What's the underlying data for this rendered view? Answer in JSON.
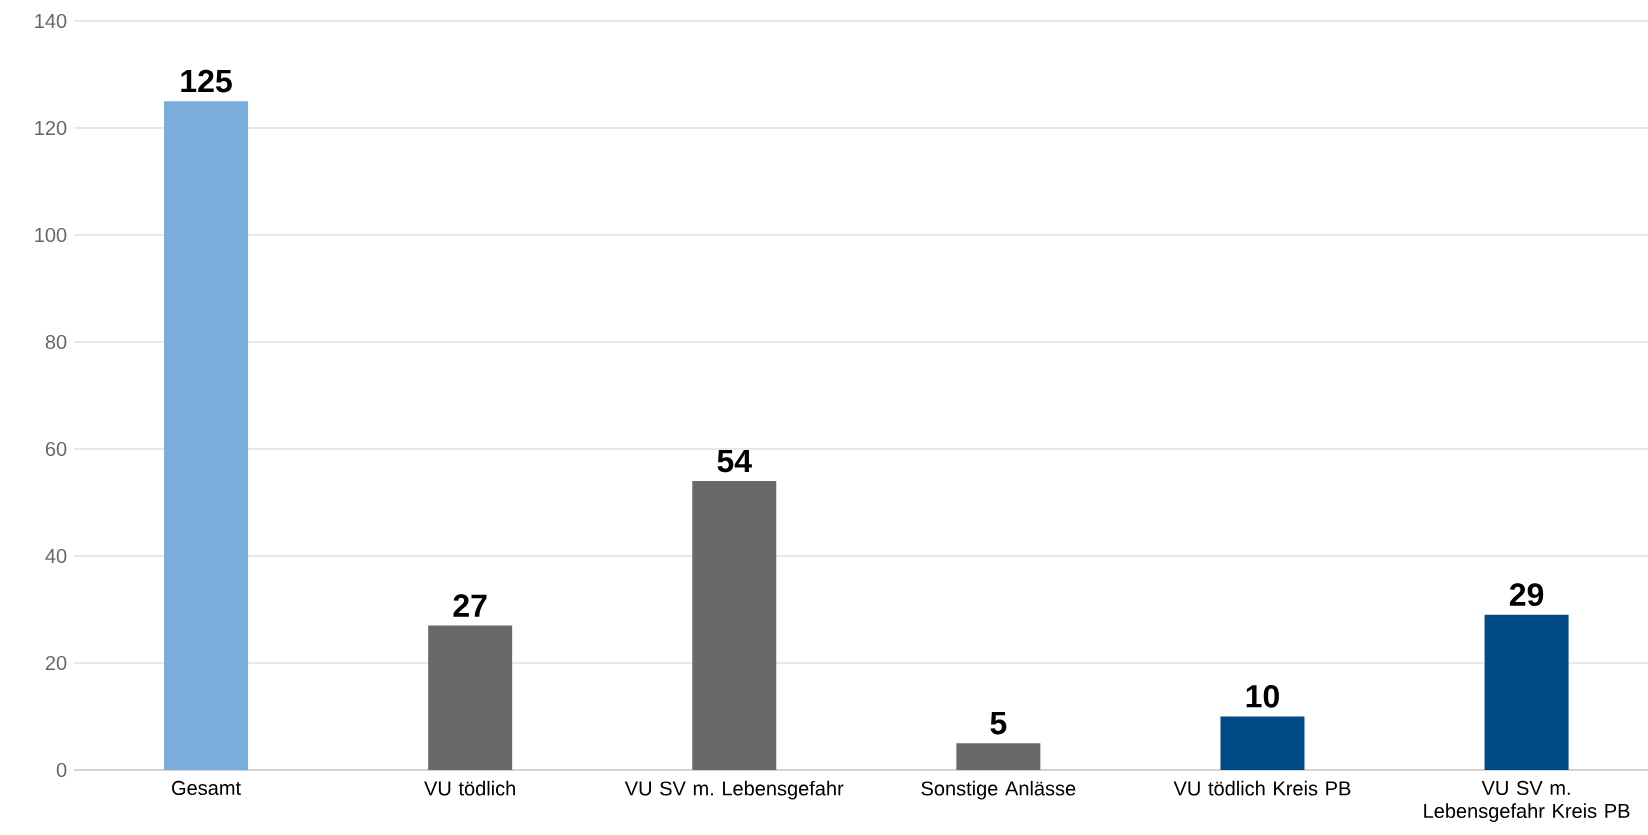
{
  "chart_data": {
    "type": "bar",
    "categories": [
      "Gesamt",
      "VU tödlich",
      "VU SV m. Lebensgefahr",
      "Sonstige Anlässe",
      "VU tödlich Kreis PB",
      "VU SV m. Lebensgefahr Kreis PB"
    ],
    "values": [
      125,
      27,
      54,
      5,
      10,
      29
    ],
    "colors": [
      "#7aaddc",
      "#696969",
      "#696969",
      "#696969",
      "#004b87",
      "#004b87"
    ],
    "ylim": [
      0,
      140
    ],
    "yticks": [
      0,
      20,
      40,
      60,
      80,
      100,
      120,
      140
    ],
    "grid": "y",
    "data_labels": true
  }
}
